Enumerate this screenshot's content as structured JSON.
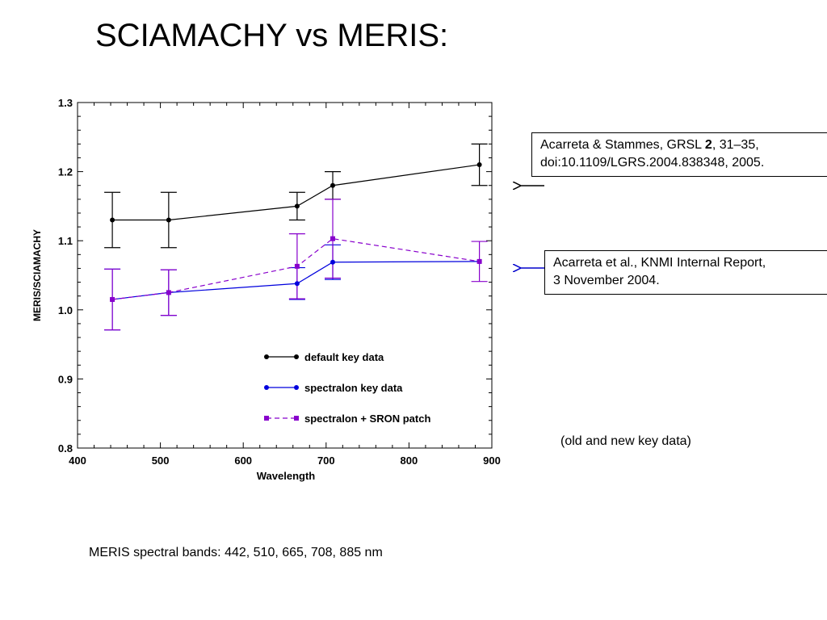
{
  "slide": {
    "title": "SCIAMACHY vs MERIS:",
    "reference_1": {
      "prefix": "Acarreta & Stammes, GRSL ",
      "volume": "2",
      "line1_rest": ", 31–35,",
      "line2": "doi:10.1109/LGRS.2004.838348, 2005."
    },
    "reference_2": {
      "line1": "Acarreta et al., KNMI Internal Report,",
      "line2": "3 November 2004."
    },
    "note": "(old and new key data)",
    "footer": "MERIS spectral bands: 442, 510, 665, 708, 885 nm",
    "arrow_colors": {
      "reference_1": "#000000",
      "reference_2": "#0000cc"
    }
  },
  "chart_data": {
    "type": "line",
    "xlabel": "Wavelength",
    "ylabel": "MERIS/SCIAMACHY",
    "xlim": [
      400,
      900
    ],
    "ylim": [
      0.8,
      1.3
    ],
    "xticks": [
      400,
      500,
      600,
      700,
      800,
      900
    ],
    "xtick_labels": [
      "400",
      "500",
      "600",
      "700",
      "800",
      "900"
    ],
    "yticks": [
      0.8,
      0.9,
      1.0,
      1.1,
      1.2,
      1.3
    ],
    "ytick_labels": [
      "0.8",
      "0.9",
      "1.0",
      "1.1",
      "1.2",
      "1.3"
    ],
    "grid": false,
    "legend_position": "lower-right",
    "series": [
      {
        "name": "default key data",
        "color": "#000000",
        "dash": "solid",
        "marker": "circle",
        "x": [
          442,
          510,
          665,
          708,
          885
        ],
        "y": [
          1.13,
          1.13,
          1.15,
          1.18,
          1.21
        ],
        "err": [
          0.04,
          0.04,
          0.02,
          0.02,
          0.03
        ]
      },
      {
        "name": "spectralon key data",
        "color": "#0000dd",
        "dash": "solid",
        "marker": "circle",
        "x": [
          442,
          510,
          665,
          708,
          885
        ],
        "y": [
          1.015,
          1.025,
          1.038,
          1.069,
          1.07
        ],
        "err": [
          0.044,
          0.033,
          0.023,
          0.025,
          0.0
        ]
      },
      {
        "name": "spectralon + SRON patch",
        "color": "#8800cc",
        "dash": "dashed",
        "marker": "square",
        "x": [
          442,
          510,
          665,
          708,
          885
        ],
        "y": [
          1.015,
          1.025,
          1.063,
          1.103,
          1.07
        ],
        "err": [
          0.044,
          0.033,
          0.047,
          0.057,
          0.029
        ]
      }
    ]
  }
}
